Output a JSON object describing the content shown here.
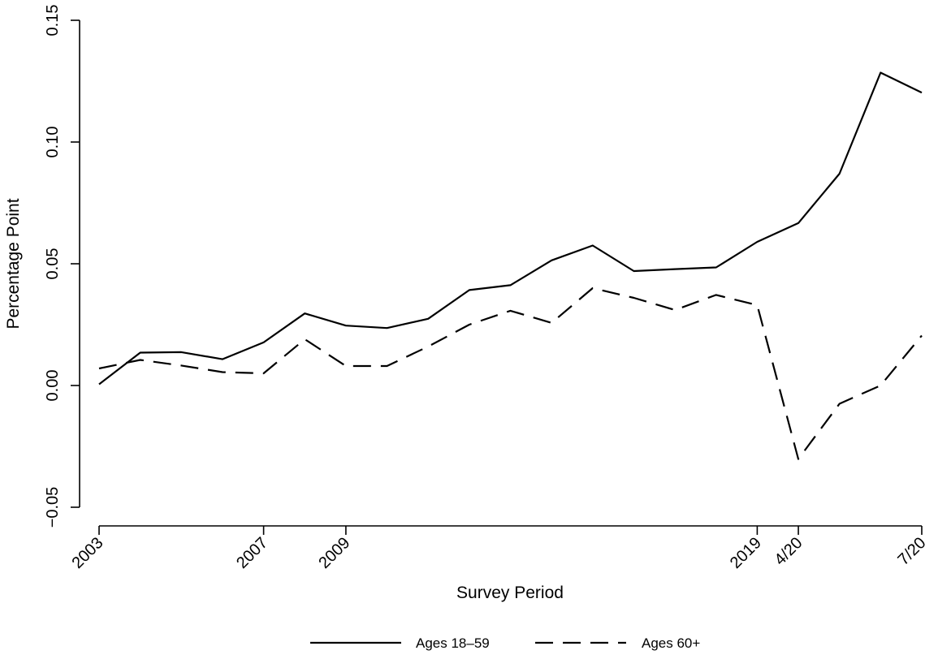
{
  "chart_data": {
    "type": "line",
    "title": "",
    "xlabel": "Survey Period",
    "ylabel": "Percentage Point",
    "x": [
      0,
      1,
      2,
      3,
      4,
      5,
      6,
      7,
      8,
      9,
      10,
      11,
      12,
      13,
      14,
      15,
      16,
      17,
      18,
      19,
      20
    ],
    "x_ticks": [
      {
        "x": 0,
        "label": "2003"
      },
      {
        "x": 4,
        "label": "2007"
      },
      {
        "x": 6,
        "label": "2009"
      },
      {
        "x": 16,
        "label": "2019"
      },
      {
        "x": 17,
        "label": "4/20"
      },
      {
        "x": 20,
        "label": "7/20"
      }
    ],
    "y_ticks": [
      {
        "y": -0.05,
        "label": "−0.05"
      },
      {
        "y": 0.0,
        "label": "0.00"
      },
      {
        "y": 0.05,
        "label": "0.05"
      },
      {
        "y": 0.1,
        "label": "0.10"
      },
      {
        "y": 0.15,
        "label": "0.15"
      }
    ],
    "xlim": [
      0,
      20
    ],
    "ylim": [
      -0.05,
      0.15
    ],
    "grid": false,
    "legend_position": "bottom",
    "series": [
      {
        "name": "Ages 18–59",
        "style": "solid",
        "values": [
          0.0005,
          0.0135,
          0.0137,
          0.0108,
          0.0177,
          0.0296,
          0.0246,
          0.0236,
          0.0274,
          0.0392,
          0.0412,
          0.0514,
          0.0575,
          0.047,
          0.0478,
          0.0485,
          0.059,
          0.0667,
          0.087,
          0.1285,
          0.1203
        ]
      },
      {
        "name": "Ages 60+",
        "style": "dashed",
        "values": [
          0.007,
          0.0105,
          0.0082,
          0.0055,
          0.005,
          0.019,
          0.008,
          0.008,
          0.016,
          0.025,
          0.0307,
          0.0257,
          0.04,
          0.036,
          0.031,
          0.0372,
          0.033,
          -0.0302,
          -0.0075,
          0.0,
          0.0205
        ]
      }
    ],
    "colors": {
      "line": "#000000",
      "background": "#ffffff"
    }
  }
}
